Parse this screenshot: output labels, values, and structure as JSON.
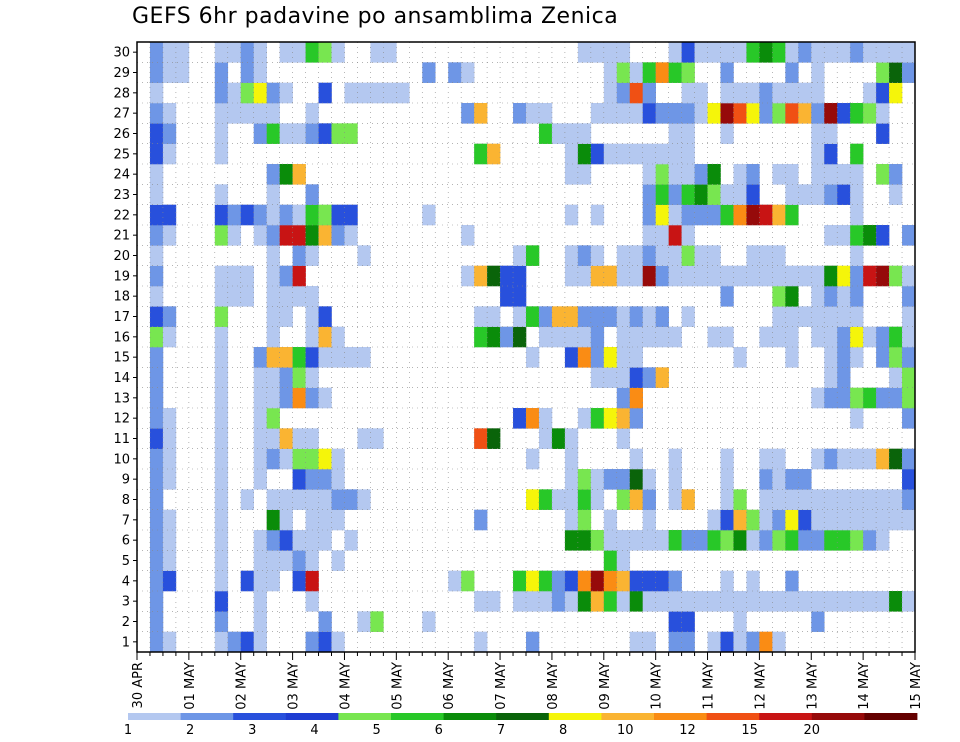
{
  "chart_data": {
    "type": "heatmap",
    "title": "GEFS 6hr padavine po ansamblima Zenica",
    "x_tick_labels": [
      "30 APR",
      "01 MAY",
      "02 MAY",
      "03 MAY",
      "04 MAY",
      "05 MAY",
      "06 MAY",
      "07 MAY",
      "08 MAY",
      "09 MAY",
      "10 MAY",
      "11 MAY",
      "12 MAY",
      "13 MAY",
      "14 MAY",
      "15 MAY"
    ],
    "y_tick_labels": [
      1,
      2,
      3,
      4,
      5,
      6,
      7,
      8,
      9,
      10,
      11,
      12,
      13,
      14,
      15,
      16,
      17,
      18,
      19,
      20,
      21,
      22,
      23,
      24,
      25,
      26,
      27,
      28,
      29,
      30
    ],
    "n_columns": 60,
    "levels": {
      "labels": [
        "1",
        "2",
        "3",
        "4",
        "5",
        "6",
        "7",
        "8",
        "10",
        "12",
        "15",
        "20"
      ],
      "colors": [
        "#b4c8f0",
        "#6e96e6",
        "#2850dc",
        "#1e3cd2",
        "#78e650",
        "#28c828",
        "#0a8c0a",
        "#0a640a",
        "#f5f50a",
        "#fab432",
        "#fa8c14",
        "#f05014",
        "#c81414",
        "#960a0a",
        "#640000"
      ]
    },
    "data_rule": "value at 0-based column c per row; empty cells are below threshold",
    "rows": {
      "30": {
        "1": 2,
        "2": 1,
        "3": 1,
        "6": 1,
        "7": 1,
        "8": 2,
        "9": 1,
        "11": 1,
        "12": 1,
        "13": 6,
        "14": 5,
        "15": 1,
        "18": 1,
        "19": 1,
        "34": 1,
        "35": 1,
        "36": 1,
        "37": 1,
        "41": 1,
        "42": 3,
        "43": 1,
        "44": 1,
        "45": 1,
        "46": 1,
        "47": 6,
        "48": 7,
        "49": 6,
        "50": 1,
        "51": 2,
        "52": 1,
        "53": 1,
        "54": 1,
        "55": 2,
        "56": 1,
        "57": 1,
        "58": 1,
        "59": 1
      },
      "29": {
        "1": 2,
        "2": 1,
        "3": 1,
        "6": 2,
        "8": 2,
        "9": 1,
        "22": 2,
        "24": 2,
        "25": 1,
        "36": 1,
        "37": 5,
        "38": 1,
        "39": 6,
        "40": 11,
        "41": 6,
        "42": 5,
        "45": 2,
        "50": 2,
        "52": 1,
        "57": 5,
        "58": 8,
        "59": 2
      },
      "28": {
        "1": 1,
        "6": 2,
        "7": 1,
        "8": 5,
        "9": 9,
        "10": 2,
        "11": 1,
        "14": 3,
        "16": 1,
        "17": 1,
        "18": 1,
        "19": 1,
        "20": 1,
        "36": 1,
        "37": 2,
        "38": 12,
        "39": 2,
        "42": 1,
        "43": 1,
        "45": 1,
        "46": 1,
        "47": 1,
        "48": 2,
        "49": 1,
        "50": 1,
        "51": 1,
        "52": 1,
        "56": 1,
        "57": 3,
        "58": 9
      },
      "27": {
        "1": 2,
        "2": 1,
        "6": 1,
        "7": 1,
        "8": 1,
        "9": 1,
        "10": 1,
        "13": 1,
        "25": 2,
        "26": 10,
        "29": 2,
        "30": 1,
        "31": 1,
        "35": 1,
        "36": 1,
        "37": 1,
        "38": 1,
        "39": 3,
        "40": 2,
        "41": 2,
        "42": 2,
        "43": 1,
        "44": 9,
        "45": 14,
        "46": 12,
        "47": 9,
        "48": 2,
        "49": 5,
        "50": 12,
        "51": 10,
        "52": 2,
        "53": 14,
        "54": 3,
        "55": 6,
        "56": 5,
        "57": 1
      },
      "26": {
        "1": 3,
        "2": 2,
        "6": 1,
        "9": 2,
        "10": 6,
        "11": 1,
        "12": 1,
        "13": 2,
        "14": 3,
        "15": 5,
        "16": 5,
        "31": 6,
        "32": 1,
        "33": 1,
        "34": 1,
        "41": 1,
        "42": 1,
        "45": 1,
        "52": 1,
        "53": 1,
        "57": 3
      },
      "25": {
        "1": 3,
        "2": 1,
        "6": 1,
        "26": 6,
        "27": 10,
        "33": 1,
        "34": 7,
        "35": 3,
        "36": 1,
        "37": 1,
        "38": 1,
        "39": 1,
        "40": 1,
        "41": 1,
        "42": 1,
        "52": 1,
        "53": 3,
        "55": 6
      },
      "24": {
        "1": 1,
        "10": 2,
        "11": 7,
        "12": 10,
        "33": 1,
        "34": 1,
        "39": 1,
        "40": 5,
        "41": 1,
        "42": 1,
        "43": 2,
        "44": 7,
        "46": 1,
        "47": 2,
        "49": 1,
        "50": 1,
        "52": 1,
        "53": 1,
        "54": 1,
        "55": 1,
        "57": 5,
        "58": 2
      },
      "23": {
        "1": 1,
        "6": 1,
        "10": 1,
        "13": 2,
        "39": 2,
        "40": 6,
        "41": 2,
        "42": 6,
        "43": 7,
        "44": 5,
        "45": 1,
        "46": 1,
        "47": 3,
        "50": 1,
        "51": 1,
        "52": 1,
        "53": 2,
        "54": 3,
        "55": 1,
        "58": 1
      },
      "22": {
        "1": 3,
        "2": 3,
        "6": 3,
        "7": 2,
        "8": 3,
        "9": 2,
        "10": 1,
        "11": 2,
        "12": 1,
        "13": 6,
        "14": 5,
        "15": 3,
        "16": 3,
        "22": 1,
        "33": 1,
        "35": 1,
        "39": 2,
        "40": 9,
        "41": 1,
        "42": 2,
        "43": 2,
        "44": 2,
        "45": 6,
        "46": 11,
        "47": 14,
        "48": 13,
        "49": 10,
        "50": 6,
        "55": 1
      },
      "21": {
        "1": 2,
        "2": 1,
        "6": 5,
        "7": 1,
        "9": 1,
        "10": 2,
        "11": 13,
        "12": 13,
        "13": 7,
        "14": 10,
        "15": 2,
        "16": 1,
        "25": 1,
        "39": 1,
        "40": 1,
        "41": 13,
        "42": 1,
        "53": 1,
        "54": 1,
        "55": 6,
        "56": 7,
        "57": 3,
        "59": 2
      },
      "20": {
        "1": 1,
        "10": 1,
        "12": 2,
        "13": 1,
        "17": 1,
        "29": 1,
        "30": 6,
        "33": 1,
        "34": 2,
        "35": 1,
        "37": 1,
        "38": 1,
        "39": 2,
        "40": 1,
        "41": 1,
        "42": 5,
        "43": 1,
        "44": 1,
        "47": 1,
        "48": 1,
        "49": 1,
        "55": 1
      },
      "19": {
        "1": 2,
        "6": 1,
        "7": 1,
        "8": 1,
        "10": 1,
        "11": 2,
        "12": 13,
        "25": 1,
        "26": 10,
        "27": 8,
        "28": 3,
        "29": 3,
        "33": 1,
        "34": 1,
        "35": 10,
        "36": 10,
        "37": 1,
        "38": 1,
        "39": 14,
        "40": 2,
        "41": 1,
        "42": 1,
        "43": 1,
        "44": 1,
        "45": 1,
        "46": 1,
        "47": 1,
        "48": 1,
        "49": 1,
        "50": 1,
        "51": 1,
        "52": 1,
        "53": 7,
        "54": 9,
        "55": 2,
        "56": 13,
        "57": 14,
        "58": 5,
        "59": 1
      },
      "18": {
        "1": 1,
        "6": 1,
        "7": 1,
        "8": 1,
        "10": 1,
        "11": 1,
        "12": 1,
        "13": 1,
        "28": 3,
        "29": 3,
        "45": 2,
        "49": 5,
        "50": 7,
        "52": 1,
        "53": 2,
        "54": 1,
        "55": 2,
        "59": 2
      },
      "17": {
        "1": 3,
        "2": 2,
        "6": 5,
        "10": 1,
        "11": 1,
        "13": 1,
        "14": 3,
        "26": 1,
        "27": 1,
        "29": 1,
        "30": 6,
        "31": 2,
        "32": 10,
        "33": 10,
        "34": 2,
        "35": 2,
        "36": 2,
        "37": 1,
        "38": 2,
        "39": 1,
        "40": 2,
        "42": 1,
        "49": 1,
        "50": 1,
        "51": 1,
        "52": 1,
        "53": 1,
        "54": 1,
        "55": 1,
        "59": 1
      },
      "16": {
        "1": 5,
        "2": 1,
        "6": 1,
        "10": 1,
        "13": 1,
        "14": 10,
        "15": 1,
        "26": 6,
        "27": 7,
        "28": 2,
        "29": 8,
        "31": 1,
        "32": 1,
        "33": 1,
        "34": 1,
        "35": 2,
        "37": 1,
        "38": 1,
        "39": 1,
        "40": 1,
        "41": 1,
        "44": 1,
        "45": 1,
        "48": 1,
        "49": 1,
        "50": 1,
        "52": 1,
        "53": 1,
        "54": 2,
        "55": 9,
        "56": 1,
        "57": 2,
        "58": 6,
        "59": 1
      },
      "15": {
        "1": 2,
        "6": 1,
        "9": 2,
        "10": 10,
        "11": 10,
        "12": 6,
        "13": 3,
        "14": 1,
        "15": 1,
        "16": 1,
        "17": 1,
        "30": 1,
        "33": 3,
        "34": 11,
        "35": 2,
        "36": 9,
        "37": 1,
        "38": 1,
        "46": 1,
        "50": 1,
        "53": 1,
        "54": 2,
        "55": 1,
        "57": 2,
        "58": 5,
        "59": 2
      },
      "14": {
        "1": 2,
        "6": 1,
        "9": 1,
        "10": 1,
        "11": 2,
        "12": 5,
        "13": 1,
        "35": 1,
        "36": 1,
        "37": 1,
        "38": 3,
        "39": 2,
        "40": 10,
        "53": 1,
        "54": 2,
        "58": 1,
        "59": 5
      },
      "13": {
        "1": 2,
        "6": 1,
        "9": 1,
        "10": 1,
        "11": 2,
        "12": 11,
        "13": 2,
        "14": 1,
        "37": 2,
        "38": 11,
        "52": 1,
        "53": 2,
        "54": 2,
        "55": 5,
        "56": 6,
        "57": 2,
        "58": 2,
        "59": 5
      },
      "12": {
        "1": 2,
        "2": 1,
        "6": 1,
        "9": 1,
        "10": 5,
        "29": 3,
        "30": 11,
        "31": 1,
        "34": 1,
        "35": 6,
        "36": 9,
        "37": 10,
        "38": 2,
        "55": 1,
        "59": 2
      },
      "11": {
        "1": 3,
        "2": 1,
        "6": 1,
        "9": 1,
        "10": 1,
        "11": 10,
        "12": 1,
        "13": 1,
        "17": 1,
        "18": 1,
        "26": 12,
        "27": 8,
        "31": 1,
        "32": 7,
        "33": 1,
        "37": 1
      },
      "10": {
        "1": 2,
        "2": 1,
        "6": 1,
        "9": 1,
        "10": 2,
        "11": 1,
        "12": 5,
        "13": 5,
        "14": 9,
        "15": 1,
        "30": 1,
        "33": 1,
        "38": 1,
        "41": 1,
        "45": 1,
        "48": 1,
        "49": 1,
        "52": 1,
        "53": 2,
        "54": 1,
        "55": 1,
        "56": 1,
        "57": 10,
        "58": 8,
        "59": 2
      },
      "9": {
        "1": 2,
        "2": 1,
        "6": 1,
        "9": 1,
        "12": 3,
        "13": 2,
        "14": 2,
        "15": 1,
        "33": 1,
        "34": 5,
        "35": 1,
        "36": 2,
        "37": 2,
        "38": 8,
        "39": 1,
        "41": 1,
        "45": 1,
        "48": 2,
        "49": 1,
        "50": 2,
        "51": 2,
        "59": 3
      },
      "8": {
        "1": 2,
        "6": 1,
        "8": 1,
        "10": 1,
        "11": 1,
        "12": 1,
        "13": 1,
        "14": 1,
        "15": 2,
        "16": 2,
        "17": 1,
        "30": 9,
        "31": 6,
        "32": 1,
        "33": 1,
        "34": 6,
        "35": 1,
        "37": 5,
        "38": 10,
        "39": 2,
        "41": 1,
        "42": 10,
        "45": 1,
        "46": 5,
        "48": 1,
        "49": 1,
        "50": 1,
        "51": 1,
        "52": 1,
        "53": 1,
        "54": 1,
        "55": 1,
        "56": 1,
        "57": 1,
        "58": 1,
        "59": 2
      },
      "7": {
        "1": 2,
        "2": 1,
        "6": 1,
        "10": 7,
        "11": 1,
        "13": 1,
        "14": 1,
        "15": 1,
        "26": 2,
        "33": 1,
        "34": 5,
        "36": 1,
        "39": 1,
        "44": 1,
        "45": 3,
        "47": 5,
        "48": 1,
        "49": 2,
        "50": 9,
        "51": 3,
        "52": 1,
        "53": 1,
        "54": 1,
        "55": 1,
        "56": 1,
        "57": 1,
        "58": 1,
        "59": 1,
        "46": 10
      },
      "6": {
        "1": 2,
        "2": 1,
        "6": 1,
        "9": 1,
        "10": 2,
        "11": 3,
        "12": 1,
        "13": 1,
        "14": 1,
        "16": 1,
        "33": 7,
        "34": 7,
        "35": 5,
        "36": 1,
        "37": 1,
        "38": 1,
        "39": 1,
        "40": 1,
        "41": 6,
        "42": 2,
        "43": 2,
        "44": 6,
        "45": 5,
        "46": 7,
        "47": 1,
        "48": 2,
        "49": 5,
        "50": 6,
        "51": 2,
        "52": 2,
        "53": 6,
        "54": 6,
        "55": 5,
        "56": 2,
        "57": 1
      },
      "5": {
        "1": 2,
        "2": 1,
        "6": 1,
        "9": 1,
        "10": 1,
        "11": 1,
        "12": 2,
        "13": 1,
        "15": 1,
        "36": 6,
        "37": 1
      },
      "4": {
        "1": 2,
        "2": 3,
        "6": 1,
        "8": 3,
        "9": 1,
        "10": 1,
        "12": 3,
        "13": 13,
        "24": 1,
        "25": 5,
        "29": 6,
        "30": 9,
        "31": 6,
        "32": 2,
        "33": 3,
        "34": 11,
        "35": 14,
        "36": 11,
        "37": 10,
        "38": 3,
        "39": 3,
        "40": 3,
        "41": 2,
        "45": 1,
        "47": 1,
        "50": 2
      },
      "3": {
        "1": 2,
        "6": 3,
        "9": 1,
        "13": 1,
        "26": 1,
        "27": 1,
        "29": 1,
        "30": 1,
        "31": 1,
        "32": 2,
        "33": 1,
        "34": 7,
        "35": 10,
        "36": 6,
        "37": 1,
        "38": 7,
        "39": 1,
        "40": 1,
        "41": 1,
        "42": 1,
        "43": 1,
        "44": 1,
        "45": 1,
        "46": 1,
        "47": 1,
        "48": 1,
        "49": 1,
        "50": 1,
        "51": 1,
        "52": 1,
        "53": 1,
        "54": 1,
        "55": 1,
        "56": 1,
        "57": 1,
        "58": 7,
        "59": 1
      },
      "2": {
        "1": 2,
        "6": 2,
        "9": 1,
        "14": 2,
        "17": 1,
        "18": 5,
        "22": 1,
        "41": 3,
        "42": 3,
        "46": 1,
        "52": 2
      },
      "1": {
        "1": 2,
        "2": 1,
        "6": 1,
        "7": 2,
        "8": 3,
        "9": 1,
        "13": 2,
        "14": 3,
        "15": 1,
        "26": 1,
        "30": 2,
        "38": 1,
        "39": 1,
        "41": 2,
        "42": 2,
        "44": 1,
        "45": 3,
        "46": 1,
        "47": 2,
        "48": 11,
        "49": 1
      }
    }
  }
}
